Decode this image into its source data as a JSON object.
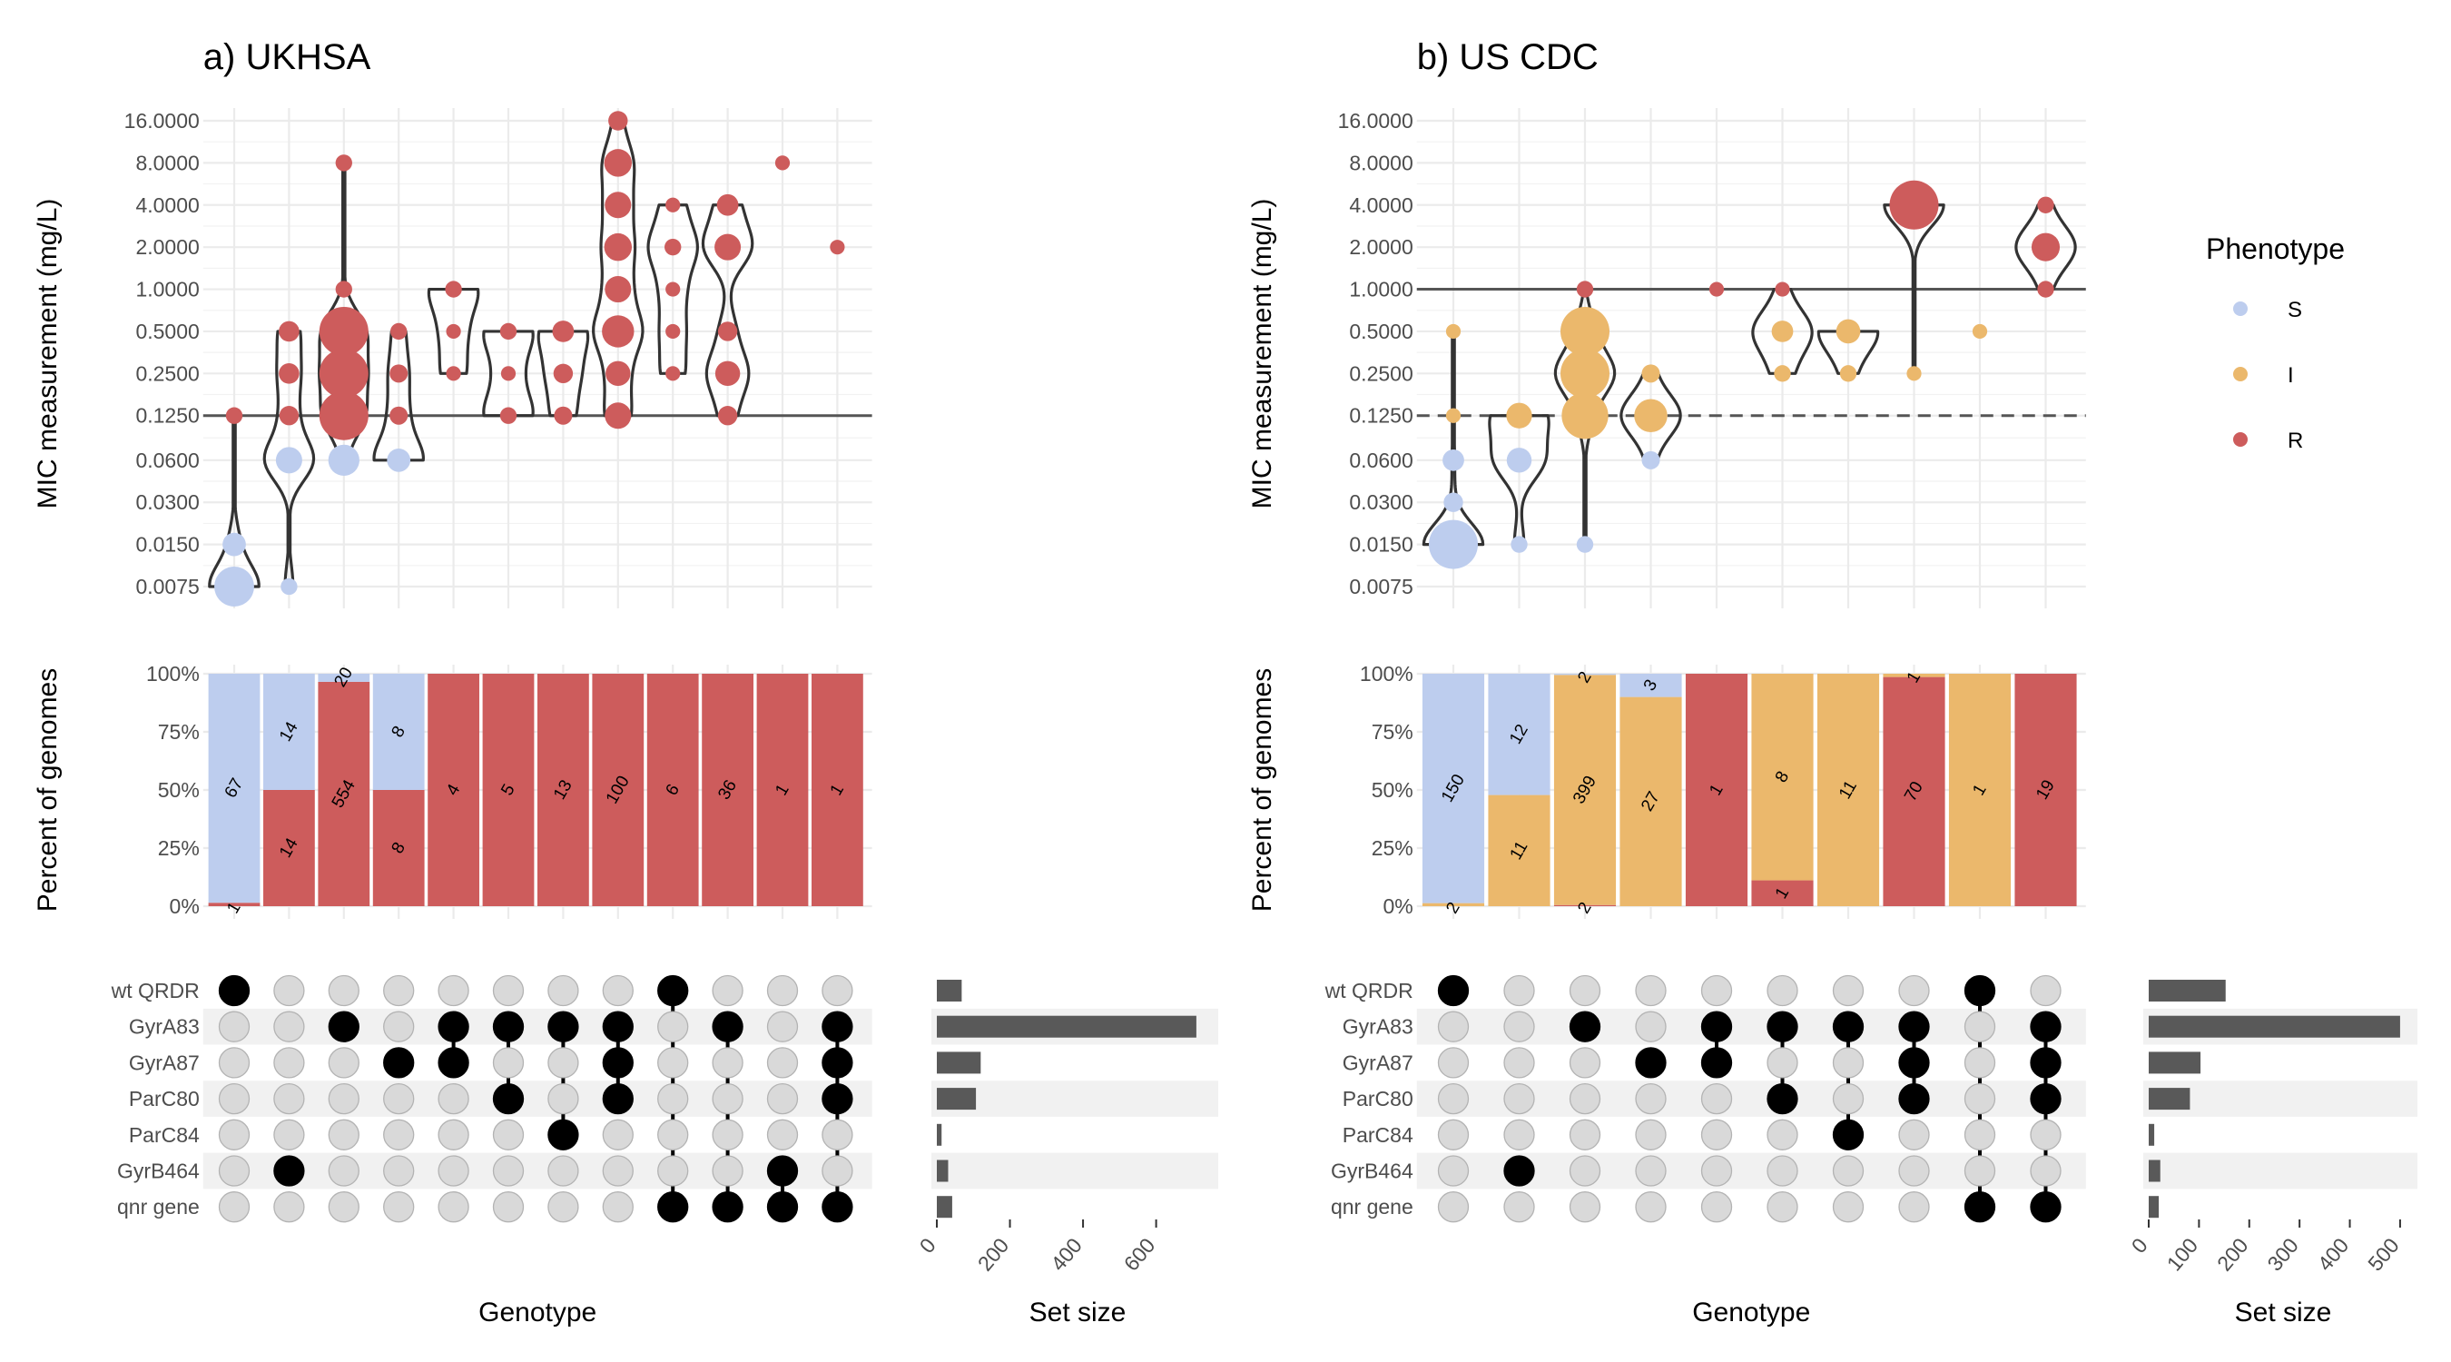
{
  "figure": {
    "legend": {
      "title": "Phenotype",
      "placement": "right",
      "items": [
        {
          "label": "S",
          "color": "#bdcdee"
        },
        {
          "label": "I",
          "color": "#ebb86c"
        },
        {
          "label": "R",
          "color": "#cd5c5c"
        }
      ]
    }
  },
  "chart_data": [
    {
      "type": "upset",
      "panel": "a",
      "title": "a) UKHSA",
      "mic_ylabel": "MIC measurement (mg/L)",
      "mic_scale": "log2",
      "mic_ticks": [
        "0.0075",
        "0.0150",
        "0.0300",
        "0.0600",
        "0.1250",
        "0.2500",
        "0.5000",
        "1.0000",
        "2.0000",
        "4.0000",
        "8.0000",
        "16.0000"
      ],
      "mic_tick_values": [
        0.0075,
        0.015,
        0.03,
        0.06,
        0.125,
        0.25,
        0.5,
        1,
        2,
        4,
        8,
        16
      ],
      "breakpoints": [
        {
          "value": 0.125,
          "style": "solid"
        }
      ],
      "pct_ylabel": "Percent of genomes",
      "pct_ticks": [
        "0%",
        "25%",
        "50%",
        "75%",
        "100%"
      ],
      "xlabel": "Genotype",
      "sets": [
        "wt QRDR",
        "GyrA83",
        "GyrA87",
        "ParC80",
        "ParC84",
        "GyrB464",
        "qnr gene"
      ],
      "set_sizes": [
        68,
        710,
        120,
        107,
        13,
        31,
        42
      ],
      "setsize_xlabel": "Set size",
      "setsize_ticks": [
        0,
        200,
        400,
        600
      ],
      "setsize_max": 750,
      "columns": [
        {
          "members": [
            0
          ],
          "counts": {
            "S": 67,
            "R": 1
          },
          "mic": {
            "S": {
              "0.0075": 40,
              "0.015": 8
            },
            "R": {
              "0.125": 2
            }
          }
        },
        {
          "members": [
            5
          ],
          "counts": {
            "S": 14,
            "R": 14
          },
          "mic": {
            "S": {
              "0.0075": 2,
              "0.06": 12
            },
            "R": {
              "0.125": 4,
              "0.25": 5,
              "0.5": 5
            }
          }
        },
        {
          "members": [
            1
          ],
          "counts": {
            "S": 20,
            "R": 554
          },
          "mic": {
            "S": {
              "0.06": 20
            },
            "R": {
              "0.125": 180,
              "0.25": 180,
              "0.5": 190,
              "1": 2,
              "8": 2
            }
          }
        },
        {
          "members": [
            2
          ],
          "counts": {
            "S": 8,
            "R": 8
          },
          "mic": {
            "S": {
              "0.06": 8
            },
            "R": {
              "0.125": 3,
              "0.25": 3,
              "0.5": 2
            }
          }
        },
        {
          "members": [
            1,
            2
          ],
          "counts": {
            "R": 4
          },
          "mic": {
            "R": {
              "0.25": 1,
              "0.5": 1,
              "1": 2
            }
          }
        },
        {
          "members": [
            1,
            3
          ],
          "counts": {
            "R": 5
          },
          "mic": {
            "R": {
              "0.125": 2,
              "0.25": 1,
              "0.5": 2
            }
          }
        },
        {
          "members": [
            1,
            4
          ],
          "counts": {
            "R": 13
          },
          "mic": {
            "R": {
              "0.125": 3,
              "0.25": 4,
              "0.5": 6
            }
          }
        },
        {
          "members": [
            1,
            2,
            3
          ],
          "counts": {
            "R": 100
          },
          "mic": {
            "R": {
              "0.125": 12,
              "0.25": 10,
              "0.5": 22,
              "1": 12,
              "2": 14,
              "4": 12,
              "8": 14,
              "16": 4
            }
          }
        },
        {
          "members": [
            0,
            6
          ],
          "counts": {
            "R": 6
          },
          "mic": {
            "R": {
              "0.25": 1,
              "0.5": 1,
              "1": 1,
              "2": 2,
              "4": 1
            }
          }
        },
        {
          "members": [
            1,
            6
          ],
          "counts": {
            "R": 36
          },
          "mic": {
            "R": {
              "0.125": 4,
              "0.25": 10,
              "0.5": 4,
              "2": 12,
              "4": 6
            }
          }
        },
        {
          "members": [
            5,
            6
          ],
          "counts": {
            "R": 1
          },
          "mic": {
            "R": {
              "8": 1
            }
          }
        },
        {
          "members": [
            1,
            2,
            3,
            6
          ],
          "counts": {
            "R": 1
          },
          "mic": {
            "R": {
              "2": 1
            }
          }
        }
      ]
    },
    {
      "type": "upset",
      "panel": "b",
      "title": "b) US CDC",
      "mic_ylabel": "MIC measurement (mg/L)",
      "mic_scale": "log2",
      "mic_ticks": [
        "0.0075",
        "0.0150",
        "0.0300",
        "0.0600",
        "0.1250",
        "0.2500",
        "0.5000",
        "1.0000",
        "2.0000",
        "4.0000",
        "8.0000",
        "16.0000"
      ],
      "mic_tick_values": [
        0.0075,
        0.015,
        0.03,
        0.06,
        0.125,
        0.25,
        0.5,
        1,
        2,
        4,
        8,
        16
      ],
      "breakpoints": [
        {
          "value": 1,
          "style": "solid"
        },
        {
          "value": 0.125,
          "style": "dashed"
        }
      ],
      "pct_ylabel": "Percent of genomes",
      "pct_ticks": [
        "0%",
        "25%",
        "50%",
        "75%",
        "100%"
      ],
      "xlabel": "Genotype",
      "sets": [
        "wt QRDR",
        "GyrA83",
        "GyrA87",
        "ParC80",
        "ParC84",
        "GyrB464",
        "qnr gene"
      ],
      "set_sizes": [
        153,
        500,
        103,
        82,
        11,
        23,
        20
      ],
      "setsize_xlabel": "Set size",
      "setsize_ticks": [
        0,
        100,
        200,
        300,
        400,
        500
      ],
      "setsize_max": 520,
      "columns": [
        {
          "members": [
            0
          ],
          "counts": {
            "S": 150,
            "I": 2
          },
          "mic": {
            "S": {
              "0.015": 140,
              "0.03": 4,
              "0.06": 6
            },
            "I": {
              "0.125": 1,
              "0.5": 1
            }
          }
        },
        {
          "members": [
            5
          ],
          "counts": {
            "S": 12,
            "I": 11
          },
          "mic": {
            "S": {
              "0.015": 2,
              "0.06": 10
            },
            "I": {
              "0.125": 11
            }
          }
        },
        {
          "members": [
            1
          ],
          "counts": {
            "I": 399,
            "R": 2,
            "S": 2
          },
          "mic": {
            "S": {
              "0.015": 2
            },
            "I": {
              "0.125": 60,
              "0.25": 260,
              "0.5": 80
            },
            "R": {
              "1": 2
            }
          }
        },
        {
          "members": [
            2
          ],
          "counts": {
            "I": 27,
            "S": 3
          },
          "mic": {
            "S": {
              "0.06": 3
            },
            "I": {
              "0.125": 24,
              "0.25": 3
            }
          }
        },
        {
          "members": [
            1,
            2
          ],
          "counts": {
            "R": 1
          },
          "mic": {
            "R": {
              "1": 1
            }
          }
        },
        {
          "members": [
            1,
            3
          ],
          "counts": {
            "I": 8,
            "R": 1
          },
          "mic": {
            "I": {
              "0.25": 2,
              "0.5": 6
            },
            "R": {
              "1": 1
            }
          }
        },
        {
          "members": [
            1,
            4
          ],
          "counts": {
            "I": 11
          },
          "mic": {
            "I": {
              "0.25": 2,
              "0.5": 9
            }
          }
        },
        {
          "members": [
            1,
            2,
            3
          ],
          "counts": {
            "R": 70,
            "I": 1
          },
          "mic": {
            "I": {
              "0.25": 1
            },
            "R": {
              "4": 70
            }
          }
        },
        {
          "members": [
            0,
            6
          ],
          "counts": {
            "I": 1
          },
          "mic": {
            "I": {
              "0.5": 1
            }
          }
        },
        {
          "members": [
            1,
            2,
            3,
            6
          ],
          "counts": {
            "R": 19
          },
          "mic": {
            "R": {
              "1": 2,
              "2": 15,
              "4": 2
            }
          }
        }
      ]
    }
  ]
}
